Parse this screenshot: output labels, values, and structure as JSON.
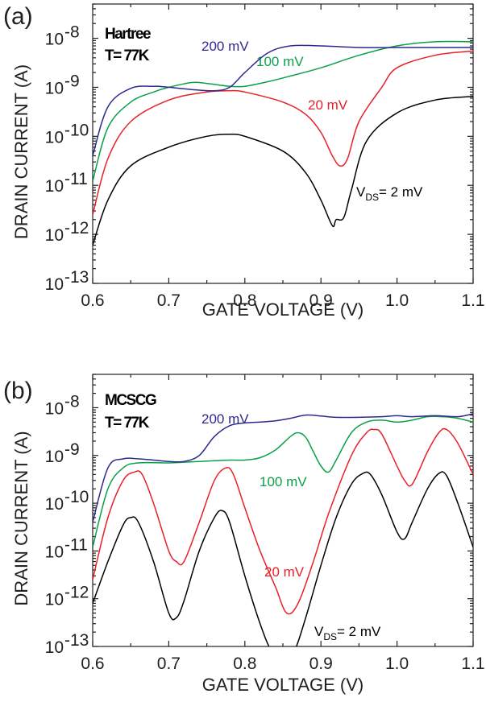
{
  "colors": {
    "black": "#000000",
    "red": "#e8202a",
    "green": "#0aa04a",
    "blue": "#2b2a8e"
  },
  "chart_data": [
    {
      "type": "line",
      "panel_label": "(a)",
      "model": "Hartree",
      "temperature": "T= 77K",
      "xlabel": "GATE VOLTAGE (V)",
      "ylabel": "DRAIN CURRENT (A)",
      "xlim": [
        0.6,
        1.1
      ],
      "ylim": [
        1e-13,
        5e-08
      ],
      "y_scale": "log",
      "x_ticks": [
        "0.6",
        "0.7",
        "0.8",
        "0.9",
        "1.0",
        "1.1"
      ],
      "y_ticks": [
        {
          "base": "10",
          "exp": "-13"
        },
        {
          "base": "10",
          "exp": "-12"
        },
        {
          "base": "10",
          "exp": "-11"
        },
        {
          "base": "10",
          "exp": "-10"
        },
        {
          "base": "10",
          "exp": "-9"
        },
        {
          "base": "10",
          "exp": "-8"
        }
      ],
      "grid": false,
      "series": [
        {
          "name": "VDS= 2 mV",
          "label_main": "V",
          "label_sub": "DS",
          "label_rest": "= 2 mV",
          "color": "#000000",
          "x": [
            0.6,
            0.62,
            0.65,
            0.7,
            0.75,
            0.78,
            0.8,
            0.85,
            0.88,
            0.9,
            0.915,
            0.92,
            0.93,
            0.94,
            0.96,
            1.0,
            1.05,
            1.1
          ],
          "y": [
            6e-13,
            5e-12,
            2.5e-11,
            6e-11,
            1e-10,
            1.1e-10,
            1e-10,
            5e-11,
            1.8e-11,
            5e-12,
            1.5e-12,
            2e-12,
            2.2e-12,
            8e-12,
            8e-11,
            3e-10,
            5.5e-10,
            6.5e-10
          ]
        },
        {
          "name": "20 mV",
          "color": "#e8202a",
          "x": [
            0.6,
            0.62,
            0.65,
            0.7,
            0.75,
            0.78,
            0.8,
            0.85,
            0.88,
            0.9,
            0.915,
            0.925,
            0.935,
            0.95,
            0.98,
            1.0,
            1.05,
            1.1
          ],
          "y": [
            2.5e-12,
            3.5e-11,
            2e-10,
            5.5e-10,
            8e-10,
            8.5e-10,
            8e-10,
            5e-10,
            2.8e-10,
            1.2e-10,
            4e-11,
            2.5e-11,
            3.5e-11,
            2e-10,
            1e-09,
            2.5e-09,
            4.5e-09,
            5.5e-09
          ]
        },
        {
          "name": "100 mV",
          "color": "#0aa04a",
          "x": [
            0.6,
            0.62,
            0.65,
            0.68,
            0.7,
            0.73,
            0.75,
            0.78,
            0.8,
            0.83,
            0.86,
            0.9,
            0.95,
            1.0,
            1.05,
            1.1
          ],
          "y": [
            1.2e-11,
            1.5e-10,
            5e-10,
            8e-10,
            1e-09,
            1.25e-09,
            1.2e-09,
            1.05e-09,
            1.05e-09,
            1.3e-09,
            1.7e-09,
            2.5e-09,
            4.5e-09,
            7e-09,
            8.5e-09,
            8.5e-09
          ]
        },
        {
          "name": "200 mV",
          "color": "#2b2a8e",
          "x": [
            0.6,
            0.62,
            0.65,
            0.68,
            0.7,
            0.73,
            0.76,
            0.78,
            0.8,
            0.83,
            0.86,
            0.9,
            0.95,
            1.0,
            1.05,
            1.1
          ],
          "y": [
            4e-11,
            4e-10,
            9.5e-10,
            1.05e-09,
            1e-09,
            9e-10,
            8.5e-10,
            1e-09,
            2e-09,
            5e-09,
            7e-09,
            7e-09,
            6.5e-09,
            6.5e-09,
            6.5e-09,
            6.5e-09
          ]
        }
      ]
    },
    {
      "type": "line",
      "panel_label": "(b)",
      "model": "MCSCG",
      "temperature": "T= 77K",
      "xlabel": "GATE VOLTAGE (V)",
      "ylabel": "DRAIN CURRENT (A)",
      "xlim": [
        0.6,
        1.1
      ],
      "ylim": [
        1e-13,
        5e-08
      ],
      "y_scale": "log",
      "x_ticks": [
        "0.6",
        "0.7",
        "0.8",
        "0.9",
        "1.0",
        "1.1"
      ],
      "y_ticks": [
        {
          "base": "10",
          "exp": "-13"
        },
        {
          "base": "10",
          "exp": "-12"
        },
        {
          "base": "10",
          "exp": "-11"
        },
        {
          "base": "10",
          "exp": "-10"
        },
        {
          "base": "10",
          "exp": "-9"
        },
        {
          "base": "10",
          "exp": "-8"
        }
      ],
      "grid": false,
      "series": [
        {
          "name": "VDS= 2 mV",
          "label_main": "V",
          "label_sub": "DS",
          "label_rest": "= 2 mV",
          "color": "#000000",
          "x": [
            0.6,
            0.62,
            0.64,
            0.65,
            0.66,
            0.68,
            0.7,
            0.71,
            0.72,
            0.74,
            0.76,
            0.77,
            0.78,
            0.8,
            0.82,
            0.835,
            0.85,
            0.865,
            0.88,
            0.9,
            0.92,
            0.94,
            0.955,
            0.965,
            0.98,
            1.0,
            1.01,
            1.02,
            1.04,
            1.055,
            1.065,
            1.08,
            1.1
          ],
          "y": [
            8e-13,
            6e-12,
            3.5e-11,
            5e-11,
            4e-11,
            6e-12,
            5e-13,
            4e-13,
            9e-13,
            1e-11,
            5e-11,
            7e-11,
            4e-11,
            3e-12,
            3e-13,
            8e-14,
            5e-14,
            8e-14,
            4e-13,
            5e-12,
            5e-11,
            2.5e-10,
            4.2e-10,
            4e-10,
            1.5e-10,
            2.5e-11,
            1.8e-11,
            4e-11,
            2e-10,
            4.2e-10,
            3.8e-10,
            1e-10,
            1.2e-11
          ]
        },
        {
          "name": "20 mV",
          "color": "#e8202a",
          "x": [
            0.6,
            0.62,
            0.64,
            0.655,
            0.665,
            0.68,
            0.7,
            0.71,
            0.72,
            0.74,
            0.76,
            0.775,
            0.785,
            0.8,
            0.82,
            0.84,
            0.855,
            0.87,
            0.89,
            0.91,
            0.94,
            0.96,
            0.97,
            0.98,
            1.0,
            1.01,
            1.02,
            1.04,
            1.055,
            1.065,
            1.08,
            1.1
          ],
          "y": [
            2.5e-12,
            5e-11,
            3e-10,
            4.5e-10,
            4e-10,
            1e-10,
            1e-11,
            6e-12,
            6e-12,
            4e-11,
            3e-10,
            5.5e-10,
            4e-10,
            8e-11,
            1e-11,
            1.8e-12,
            5e-13,
            8e-13,
            6e-12,
            6e-11,
            1e-09,
            3e-09,
            3.5e-09,
            2.8e-09,
            6e-10,
            3e-10,
            2.5e-10,
            1.2e-09,
            3e-09,
            3.5e-09,
            1.8e-09,
            4e-10
          ]
        },
        {
          "name": "100 mV",
          "color": "#0aa04a",
          "x": [
            0.6,
            0.62,
            0.64,
            0.66,
            0.7,
            0.74,
            0.78,
            0.8,
            0.82,
            0.84,
            0.86,
            0.87,
            0.88,
            0.89,
            0.9,
            0.91,
            0.92,
            0.94,
            0.96,
            0.98,
            1.0,
            1.02,
            1.04,
            1.06,
            1.08,
            1.1
          ],
          "y": [
            1.2e-11,
            2e-10,
            5.5e-10,
            7e-10,
            7e-10,
            7.5e-10,
            8e-10,
            8e-10,
            9e-10,
            1.3e-09,
            2.5e-09,
            3e-09,
            2.4e-09,
            1.2e-09,
            6e-10,
            4.5e-10,
            8e-10,
            3e-09,
            5e-09,
            5.5e-09,
            5e-09,
            5.5e-09,
            6.5e-09,
            6.5e-09,
            6e-09,
            5e-09
          ]
        },
        {
          "name": "200 mV",
          "color": "#2b2a8e",
          "x": [
            0.6,
            0.62,
            0.64,
            0.66,
            0.68,
            0.7,
            0.72,
            0.74,
            0.76,
            0.78,
            0.8,
            0.82,
            0.84,
            0.86,
            0.88,
            0.9,
            0.92,
            0.95,
            0.98,
            1.0,
            1.02,
            1.05,
            1.08,
            1.1
          ],
          "y": [
            4e-11,
            5.5e-10,
            8.5e-10,
            8.5e-10,
            8e-10,
            7.5e-10,
            7.5e-10,
            1e-09,
            2.5e-09,
            4.2e-09,
            4.8e-09,
            5e-09,
            5.3e-09,
            6e-09,
            7e-09,
            6.7e-09,
            6.3e-09,
            6.3e-09,
            6.5e-09,
            6.8e-09,
            6.5e-09,
            6.8e-09,
            6.5e-09,
            7.5e-09
          ]
        }
      ]
    }
  ]
}
